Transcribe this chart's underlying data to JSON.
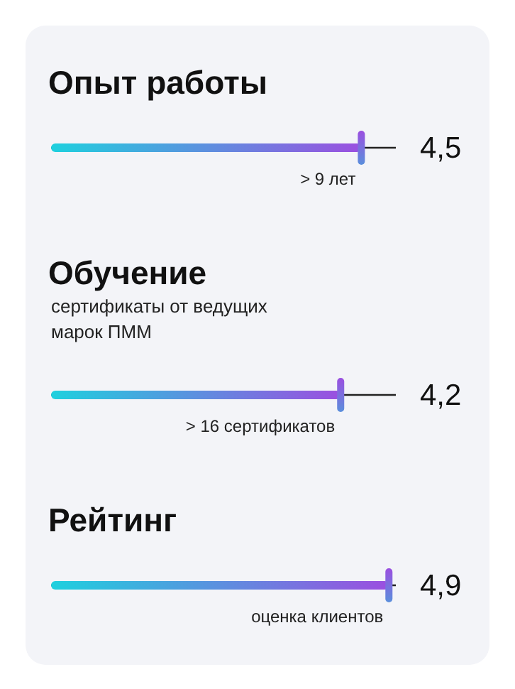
{
  "chart_data": {
    "type": "bar",
    "orientation": "horizontal",
    "categories": [
      "Опыт работы",
      "Обучение",
      "Рейтинг"
    ],
    "values": [
      4.5,
      4.2,
      4.9
    ],
    "value_labels": [
      "4,5",
      "4,2",
      "4,9"
    ],
    "color": "#9b4fe0",
    "xlim": [
      0,
      5
    ],
    "annotations": [
      "> 9 лет",
      "сертификаты от ведущих\nмарок ПММ",
      "> 16 сертификатов",
      "оценка клиентов"
    ]
  }
}
